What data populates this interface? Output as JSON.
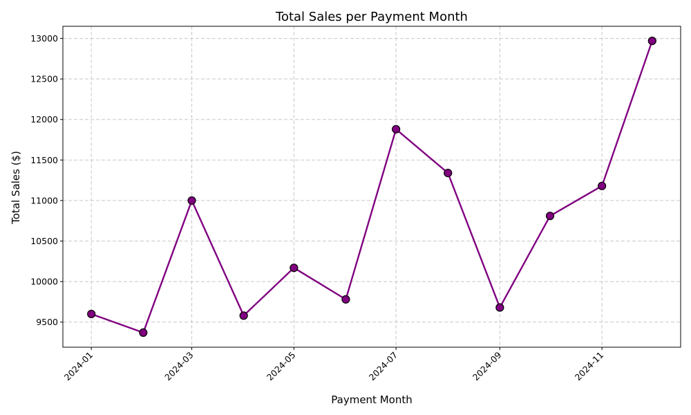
{
  "chart_data": {
    "type": "line",
    "title": "Total Sales per Payment Month",
    "xlabel": "Payment Month",
    "ylabel": "Total Sales ($)",
    "x": [
      "2024-01",
      "2024-02",
      "2024-03",
      "2024-04",
      "2024-05",
      "2024-06",
      "2024-07",
      "2024-08",
      "2024-09",
      "2024-10",
      "2024-11",
      "2024-12"
    ],
    "series": [
      {
        "values": [
          9600,
          9370,
          11000,
          9580,
          10170,
          9780,
          11880,
          11340,
          9680,
          10810,
          11180,
          12970
        ]
      }
    ],
    "xticks": [
      "2024-01",
      "2024-03",
      "2024-05",
      "2024-07",
      "2024-09",
      "2024-11"
    ],
    "yticks": [
      9500,
      10000,
      10500,
      11000,
      11500,
      12000,
      12500,
      13000
    ],
    "ylim": [
      9190,
      13150
    ],
    "xlim": [
      "2023-12-15",
      "2024-12-18"
    ],
    "grid": true,
    "colors": {
      "line": "#800080",
      "marker_fill": "#800080",
      "marker_edge": "#000000",
      "grid": "#c8c8c8"
    }
  }
}
